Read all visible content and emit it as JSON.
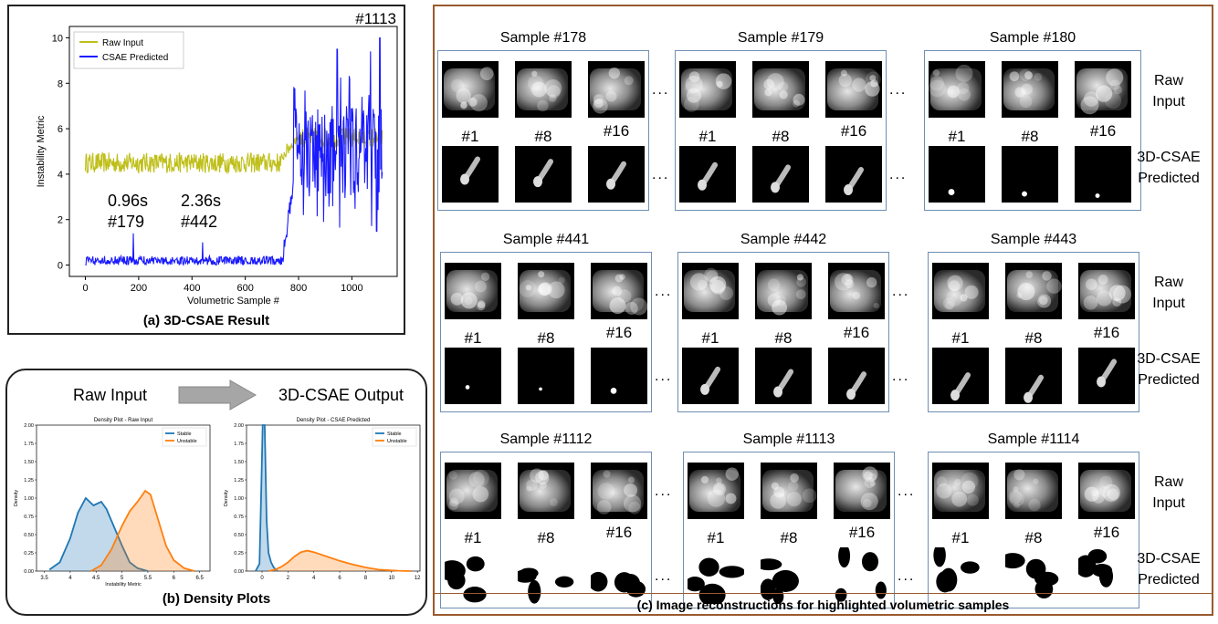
{
  "panel_a": {
    "caption": "(a) 3D-CSAE Result",
    "corner_label": "#1113",
    "annotations": [
      {
        "time": "0.96s",
        "sample": "#179"
      },
      {
        "time": "2.36s",
        "sample": "#442"
      }
    ],
    "chart_data": {
      "type": "line",
      "xlabel": "Volumetric Sample #",
      "ylabel": "Instability Metric",
      "xlim": [
        -60,
        1170
      ],
      "ylim": [
        -0.5,
        10.5
      ],
      "xticks": [
        0,
        200,
        400,
        600,
        800,
        1000
      ],
      "yticks": [
        0,
        2,
        4,
        6,
        8,
        10
      ],
      "legend": "top-left",
      "series": [
        {
          "name": "Raw Input",
          "color": "#bfbf1a",
          "segments": [
            {
              "x_start": 0,
              "x_end": 740,
              "mean": 4.5,
              "spread": 0.45
            },
            {
              "x_start": 740,
              "x_end": 800,
              "mean_start": 4.8,
              "mean_end": 5.7,
              "spread": 0.3
            },
            {
              "x_start": 800,
              "x_end": 1115,
              "mean": 5.6,
              "spread": 0.45
            }
          ]
        },
        {
          "name": "CSAE Predicted",
          "color": "#1a1aff",
          "segments": [
            {
              "x_start": 0,
              "x_end": 740,
              "mean": 0.2,
              "spread": 0.2
            },
            {
              "x_start": 740,
              "x_end": 780,
              "mean_start": 0.3,
              "mean_end": 3.5,
              "spread": 0.4
            },
            {
              "x_start": 780,
              "x_end": 1115,
              "mean": 5.0,
              "spread": 2.0
            }
          ],
          "peaks": [
            {
              "x": 180,
              "y": 1.4
            },
            {
              "x": 440,
              "y": 1.0
            },
            {
              "x": 945,
              "y": 9.5
            },
            {
              "x": 1070,
              "y": 9.4
            },
            {
              "x": 1105,
              "y": 10.0
            }
          ]
        }
      ]
    }
  },
  "panel_b": {
    "caption": "(b) Density Plots",
    "left_heading": "Raw Input",
    "right_heading": "3D-CSAE Output",
    "left_chart": {
      "chart_data": {
        "type": "area",
        "title": "Density Plot - Raw Input",
        "xlabel": "Instability Metric",
        "ylabel": "Density",
        "xlim": [
          3.35,
          6.7
        ],
        "ylim": [
          0,
          2.0
        ],
        "xticks": [
          3.5,
          4.0,
          4.5,
          5.0,
          5.5,
          6.0,
          6.5
        ],
        "yticks": [
          0.0,
          0.25,
          0.5,
          0.75,
          1.0,
          1.25,
          1.5,
          1.75,
          2.0
        ],
        "legend": "top-right",
        "series": [
          {
            "name": "Stable",
            "color": "#1f77b4",
            "x": [
              3.6,
              3.8,
              4.0,
              4.15,
              4.3,
              4.45,
              4.6,
              4.7,
              4.85,
              5.0,
              5.15,
              5.3,
              5.5
            ],
            "y": [
              0.02,
              0.12,
              0.45,
              0.8,
              1.0,
              0.9,
              0.95,
              0.85,
              0.6,
              0.35,
              0.12,
              0.04,
              0.0
            ]
          },
          {
            "name": "Unstable",
            "color": "#ff7f0e",
            "x": [
              4.4,
              4.6,
              4.8,
              5.0,
              5.15,
              5.3,
              5.45,
              5.55,
              5.7,
              5.85,
              6.0,
              6.2,
              6.4
            ],
            "y": [
              0.0,
              0.08,
              0.3,
              0.62,
              0.82,
              0.95,
              1.1,
              1.05,
              0.7,
              0.35,
              0.15,
              0.04,
              0.0
            ]
          }
        ]
      }
    },
    "right_chart": {
      "chart_data": {
        "type": "area",
        "title": "Density Plot - CSAE Predicted",
        "xlabel": "Instability Metric",
        "ylabel": "Density",
        "xlim": [
          -1.2,
          12.2
        ],
        "ylim": [
          0,
          2.0
        ],
        "xticks": [
          0,
          2,
          4,
          6,
          8,
          10,
          12
        ],
        "yticks": [
          0.0,
          0.25,
          0.5,
          0.75,
          1.0,
          1.25,
          1.5,
          1.75,
          2.0
        ],
        "legend": "top-right",
        "series": [
          {
            "name": "Stable",
            "color": "#1f77b4",
            "x": [
              -0.5,
              -0.2,
              -0.05,
              0.05,
              0.2,
              0.35,
              0.5,
              0.7,
              0.9,
              1.2
            ],
            "y": [
              0.0,
              0.1,
              1.2,
              2.0,
              2.0,
              0.7,
              0.25,
              0.12,
              0.05,
              0.0
            ]
          },
          {
            "name": "Unstable",
            "color": "#ff7f0e",
            "x": [
              0.5,
              1.0,
              1.5,
              2.0,
              2.5,
              3.0,
              3.5,
              4.0,
              5.0,
              6.0,
              7.0,
              8.0,
              9.0,
              10.5,
              11.5
            ],
            "y": [
              0.0,
              0.02,
              0.06,
              0.12,
              0.2,
              0.26,
              0.28,
              0.26,
              0.2,
              0.14,
              0.09,
              0.05,
              0.02,
              0.005,
              0.0
            ]
          }
        ]
      }
    }
  },
  "panel_c": {
    "caption": "(c) Image reconstructions for highlighted volumetric samples",
    "frame_labels": [
      "#1",
      "#8",
      "#16"
    ],
    "raw_label_line1": "Raw",
    "raw_label_line2": "Input",
    "pred_label_line1": "3D-CSAE",
    "pred_label_line2": "Predicted",
    "ellipsis": "...",
    "rows": [
      {
        "samples": [
          "Sample #178",
          "Sample #179",
          "Sample #180"
        ]
      },
      {
        "samples": [
          "Sample #441",
          "Sample #442",
          "Sample #443"
        ]
      },
      {
        "samples": [
          "Sample #1112",
          "Sample #1113",
          "Sample #1114"
        ]
      }
    ]
  }
}
